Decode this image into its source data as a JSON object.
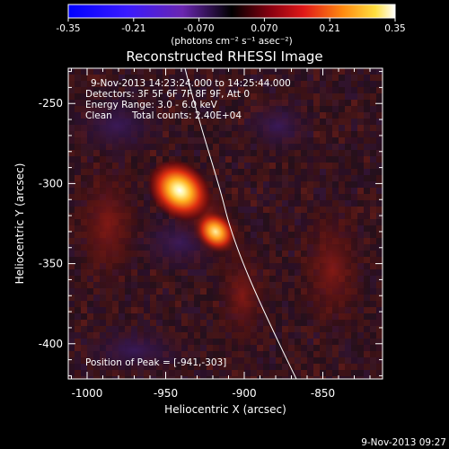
{
  "title": "Reconstructed RHESSI Image",
  "colorbar": {
    "ticks": [
      "-0.35",
      "-0.21",
      "-0.070",
      "0.070",
      "0.21",
      "0.35"
    ],
    "unit_label": "(photons cm⁻² s⁻¹ asec⁻²)",
    "range": [
      -0.35,
      0.35
    ],
    "colormap": "blue-purple-black-red-yellow-white"
  },
  "info": {
    "time_range": "9-Nov-2013 14:23:24.000 to 14:25:44.000",
    "detectors": "Detectors: 3F 5F 6F 7F 8F 9F, Att 0",
    "energy": "Energy Range: 3.0 - 6.0 keV",
    "method": "Clean",
    "total_counts": "Total counts: 2.40E+04",
    "peak": "Position of Peak = [-941,-303]"
  },
  "axes": {
    "xlabel": "Heliocentric X (arcsec)",
    "ylabel": "Heliocentric Y (arcsec)",
    "xticks": [
      "-1000",
      "-950",
      "-900",
      "-850"
    ],
    "yticks": [
      "-250",
      "-300",
      "-350",
      "-400"
    ],
    "xrange": [
      -1012,
      -812
    ],
    "yrange": [
      -228,
      -422
    ]
  },
  "footer": {
    "timestamp": "9-Nov-2013 09:27"
  },
  "colors": {
    "background": "#000000",
    "limb": "#ffffff",
    "text": "#ffffff"
  }
}
